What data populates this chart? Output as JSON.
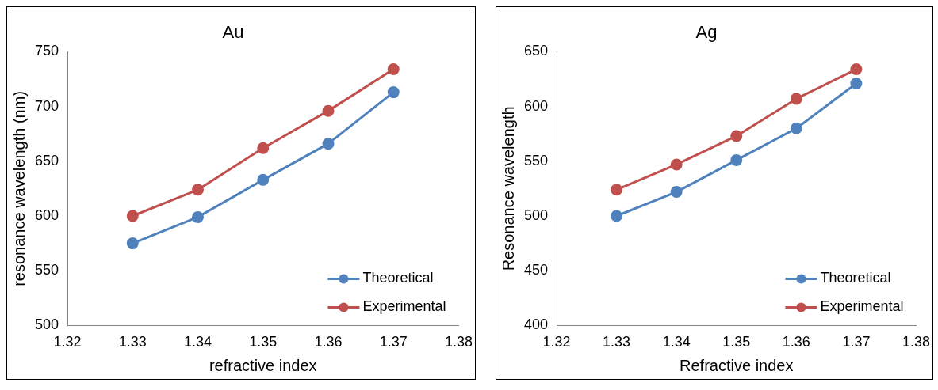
{
  "chart_data": [
    {
      "type": "line",
      "title": "Au",
      "xlabel": "refractive index",
      "ylabel": "resonance wavelength (nm)",
      "x": [
        1.33,
        1.34,
        1.35,
        1.36,
        1.37
      ],
      "series": [
        {
          "name": "Theoretical",
          "color": "#4f81bd",
          "values": [
            575,
            599,
            633,
            666,
            713
          ]
        },
        {
          "name": "Experimental",
          "color": "#c0504d",
          "values": [
            600,
            624,
            662,
            696,
            734
          ]
        }
      ],
      "xlim": [
        1.32,
        1.38
      ],
      "xticks": [
        1.32,
        1.33,
        1.34,
        1.35,
        1.36,
        1.37,
        1.38
      ],
      "ylim": [
        500,
        750
      ],
      "yticks": [
        500,
        550,
        600,
        650,
        700,
        750
      ],
      "grid": false,
      "legend": "bottom right",
      "marker": "circle"
    },
    {
      "type": "line",
      "title": "Ag",
      "xlabel": "Refractive index",
      "ylabel": "Resonance wavelength",
      "x": [
        1.33,
        1.34,
        1.35,
        1.36,
        1.37
      ],
      "series": [
        {
          "name": "Theoretical",
          "color": "#4f81bd",
          "values": [
            500,
            522,
            551,
            580,
            621
          ]
        },
        {
          "name": "Experimental",
          "color": "#c0504d",
          "values": [
            524,
            547,
            573,
            607,
            634
          ]
        }
      ],
      "xlim": [
        1.32,
        1.38
      ],
      "xticks": [
        1.32,
        1.33,
        1.34,
        1.35,
        1.36,
        1.37,
        1.38
      ],
      "ylim": [
        400,
        650
      ],
      "yticks": [
        400,
        450,
        500,
        550,
        600,
        650
      ],
      "grid": false,
      "legend": "bottom right",
      "marker": "circle"
    }
  ]
}
